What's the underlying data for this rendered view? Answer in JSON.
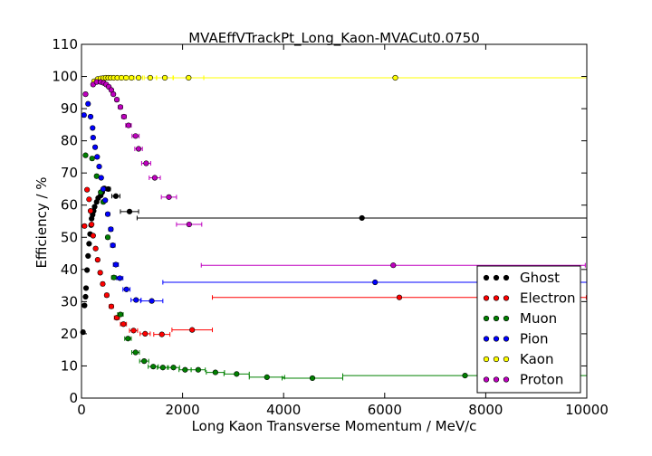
{
  "chart_data": {
    "type": "scatter",
    "title": "MVAEffVTrackPt_Long_Kaon-MVACut0.0750",
    "xlabel": "Long Kaon Transverse Momentum / MeV/c",
    "ylabel": "Efficiency / %",
    "xlim": [
      0,
      10000
    ],
    "ylim": [
      0,
      110
    ],
    "xticks": [
      "0",
      "2000",
      "4000",
      "6000",
      "8000",
      "10000"
    ],
    "yticks": [
      "0",
      "10",
      "20",
      "30",
      "40",
      "50",
      "60",
      "70",
      "80",
      "90",
      "100",
      "110"
    ],
    "grid": false,
    "legend_position": "lower-right",
    "series": [
      {
        "name": "Ghost",
        "color": "#000000",
        "points": [
          {
            "x": 30,
            "y": 20.5,
            "xerr": 30
          },
          {
            "x": 60,
            "y": 28.8,
            "xerr": 20
          },
          {
            "x": 80,
            "y": 31.5,
            "xerr": 20
          },
          {
            "x": 90,
            "y": 34.2,
            "xerr": 20
          },
          {
            "x": 110,
            "y": 39.8,
            "xerr": 20
          },
          {
            "x": 130,
            "y": 44.2,
            "xerr": 20
          },
          {
            "x": 150,
            "y": 48.0,
            "xerr": 20
          },
          {
            "x": 170,
            "y": 51.0,
            "xerr": 20
          },
          {
            "x": 190,
            "y": 53.8,
            "xerr": 20
          },
          {
            "x": 200,
            "y": 55.8,
            "xerr": 20
          },
          {
            "x": 220,
            "y": 57.0,
            "xerr": 20
          },
          {
            "x": 240,
            "y": 58.2,
            "xerr": 20
          },
          {
            "x": 260,
            "y": 59.5,
            "xerr": 20
          },
          {
            "x": 300,
            "y": 61.0,
            "xerr": 25
          },
          {
            "x": 330,
            "y": 62.2,
            "xerr": 25
          },
          {
            "x": 380,
            "y": 63.0,
            "xerr": 25
          },
          {
            "x": 410,
            "y": 64.0,
            "xerr": 25
          },
          {
            "x": 450,
            "y": 65.2,
            "xerr": 30
          },
          {
            "x": 530,
            "y": 65.0,
            "xerr": 40
          },
          {
            "x": 680,
            "y": 62.8,
            "xerr": 80
          },
          {
            "x": 950,
            "y": 58.0,
            "xerr": 180
          },
          {
            "x": 5550,
            "y": 56.0,
            "xerr": 4450
          }
        ]
      },
      {
        "name": "Electron",
        "color": "#ff0000",
        "points": [
          {
            "x": 60,
            "y": 53.5,
            "xerr": 20
          },
          {
            "x": 110,
            "y": 64.8,
            "xerr": 20
          },
          {
            "x": 150,
            "y": 61.8,
            "xerr": 20
          },
          {
            "x": 180,
            "y": 58.2,
            "xerr": 20
          },
          {
            "x": 200,
            "y": 54.0,
            "xerr": 20
          },
          {
            "x": 230,
            "y": 50.5,
            "xerr": 20
          },
          {
            "x": 280,
            "y": 46.5,
            "xerr": 25
          },
          {
            "x": 320,
            "y": 43.0,
            "xerr": 25
          },
          {
            "x": 370,
            "y": 39.0,
            "xerr": 25
          },
          {
            "x": 420,
            "y": 35.5,
            "xerr": 30
          },
          {
            "x": 500,
            "y": 32.0,
            "xerr": 35
          },
          {
            "x": 590,
            "y": 28.5,
            "xerr": 40
          },
          {
            "x": 700,
            "y": 25.0,
            "xerr": 50
          },
          {
            "x": 830,
            "y": 23.0,
            "xerr": 60
          },
          {
            "x": 1030,
            "y": 21.0,
            "xerr": 80
          },
          {
            "x": 1260,
            "y": 20.0,
            "xerr": 100
          },
          {
            "x": 1590,
            "y": 19.8,
            "xerr": 160
          },
          {
            "x": 2190,
            "y": 21.2,
            "xerr": 400
          },
          {
            "x": 6290,
            "y": 31.3,
            "xerr": 3700
          }
        ]
      },
      {
        "name": "Muon",
        "color": "#008000",
        "points": [
          {
            "x": 80,
            "y": 75.5,
            "xerr": 20
          },
          {
            "x": 210,
            "y": 74.5,
            "xerr": 30
          },
          {
            "x": 300,
            "y": 69.0,
            "xerr": 30
          },
          {
            "x": 380,
            "y": 64.0,
            "xerr": 30
          },
          {
            "x": 430,
            "y": 61.0,
            "xerr": 30
          },
          {
            "x": 520,
            "y": 50.0,
            "xerr": 35
          },
          {
            "x": 640,
            "y": 37.5,
            "xerr": 45
          },
          {
            "x": 770,
            "y": 26.0,
            "xerr": 55
          },
          {
            "x": 920,
            "y": 18.5,
            "xerr": 65
          },
          {
            "x": 1070,
            "y": 14.2,
            "xerr": 75
          },
          {
            "x": 1240,
            "y": 11.5,
            "xerr": 90
          },
          {
            "x": 1420,
            "y": 9.8,
            "xerr": 100
          },
          {
            "x": 1610,
            "y": 9.5,
            "xerr": 110
          },
          {
            "x": 1820,
            "y": 9.5,
            "xerr": 120
          },
          {
            "x": 2050,
            "y": 8.8,
            "xerr": 120
          },
          {
            "x": 2310,
            "y": 8.8,
            "xerr": 140
          },
          {
            "x": 2650,
            "y": 8.0,
            "xerr": 180
          },
          {
            "x": 3070,
            "y": 7.5,
            "xerr": 250
          },
          {
            "x": 3670,
            "y": 6.5,
            "xerr": 350
          },
          {
            "x": 4570,
            "y": 6.2,
            "xerr": 600
          },
          {
            "x": 7590,
            "y": 7.0,
            "xerr": 2420
          }
        ]
      },
      {
        "name": "Pion",
        "color": "#0000ff",
        "points": [
          {
            "x": 50,
            "y": 88.0,
            "xerr": 25
          },
          {
            "x": 130,
            "y": 91.5,
            "xerr": 25
          },
          {
            "x": 180,
            "y": 87.5,
            "xerr": 25
          },
          {
            "x": 220,
            "y": 84.0,
            "xerr": 25
          },
          {
            "x": 230,
            "y": 81.0,
            "xerr": 25
          },
          {
            "x": 270,
            "y": 78.0,
            "xerr": 25
          },
          {
            "x": 310,
            "y": 75.0,
            "xerr": 25
          },
          {
            "x": 350,
            "y": 72.0,
            "xerr": 25
          },
          {
            "x": 390,
            "y": 68.5,
            "xerr": 25
          },
          {
            "x": 430,
            "y": 65.0,
            "xerr": 30
          },
          {
            "x": 470,
            "y": 61.5,
            "xerr": 30
          },
          {
            "x": 520,
            "y": 57.2,
            "xerr": 35
          },
          {
            "x": 580,
            "y": 52.5,
            "xerr": 40
          },
          {
            "x": 620,
            "y": 47.5,
            "xerr": 45
          },
          {
            "x": 680,
            "y": 41.5,
            "xerr": 50
          },
          {
            "x": 760,
            "y": 37.3,
            "xerr": 60
          },
          {
            "x": 890,
            "y": 33.8,
            "xerr": 70
          },
          {
            "x": 1080,
            "y": 30.5,
            "xerr": 100
          },
          {
            "x": 1390,
            "y": 30.2,
            "xerr": 220
          },
          {
            "x": 5810,
            "y": 36.0,
            "xerr": 4200
          }
        ]
      },
      {
        "name": "Kaon",
        "color": "#ffff00",
        "points": [
          {
            "x": 250,
            "y": 98.5,
            "xerr": 30
          },
          {
            "x": 320,
            "y": 99.2,
            "xerr": 30
          },
          {
            "x": 380,
            "y": 99.4,
            "xerr": 30
          },
          {
            "x": 430,
            "y": 99.5,
            "xerr": 30
          },
          {
            "x": 480,
            "y": 99.6,
            "xerr": 30
          },
          {
            "x": 530,
            "y": 99.6,
            "xerr": 30
          },
          {
            "x": 580,
            "y": 99.6,
            "xerr": 30
          },
          {
            "x": 640,
            "y": 99.6,
            "xerr": 35
          },
          {
            "x": 710,
            "y": 99.6,
            "xerr": 40
          },
          {
            "x": 790,
            "y": 99.6,
            "xerr": 45
          },
          {
            "x": 880,
            "y": 99.6,
            "xerr": 50
          },
          {
            "x": 990,
            "y": 99.6,
            "xerr": 60
          },
          {
            "x": 1130,
            "y": 99.6,
            "xerr": 80
          },
          {
            "x": 1360,
            "y": 99.6,
            "xerr": 120
          },
          {
            "x": 1650,
            "y": 99.6,
            "xerr": 160
          },
          {
            "x": 2120,
            "y": 99.6,
            "xerr": 300
          },
          {
            "x": 6210,
            "y": 99.6,
            "xerr": 3790
          }
        ]
      },
      {
        "name": "Proton",
        "color": "#bf00bf",
        "points": [
          {
            "x": 80,
            "y": 94.5,
            "xerr": 30
          },
          {
            "x": 230,
            "y": 97.5,
            "xerr": 30
          },
          {
            "x": 300,
            "y": 98.3,
            "xerr": 30
          },
          {
            "x": 380,
            "y": 98.3,
            "xerr": 30
          },
          {
            "x": 440,
            "y": 98.0,
            "xerr": 30
          },
          {
            "x": 490,
            "y": 97.5,
            "xerr": 30
          },
          {
            "x": 540,
            "y": 96.8,
            "xerr": 30
          },
          {
            "x": 590,
            "y": 95.8,
            "xerr": 30
          },
          {
            "x": 630,
            "y": 94.5,
            "xerr": 30
          },
          {
            "x": 700,
            "y": 92.8,
            "xerr": 35
          },
          {
            "x": 770,
            "y": 90.5,
            "xerr": 40
          },
          {
            "x": 840,
            "y": 87.5,
            "xerr": 45
          },
          {
            "x": 930,
            "y": 84.8,
            "xerr": 55
          },
          {
            "x": 1070,
            "y": 81.5,
            "xerr": 70
          },
          {
            "x": 1130,
            "y": 77.5,
            "xerr": 75
          },
          {
            "x": 1280,
            "y": 73.0,
            "xerr": 90
          },
          {
            "x": 1450,
            "y": 68.5,
            "xerr": 110
          },
          {
            "x": 1730,
            "y": 62.5,
            "xerr": 150
          },
          {
            "x": 2130,
            "y": 54.0,
            "xerr": 250
          },
          {
            "x": 6170,
            "y": 41.3,
            "xerr": 3800
          }
        ]
      }
    ]
  }
}
